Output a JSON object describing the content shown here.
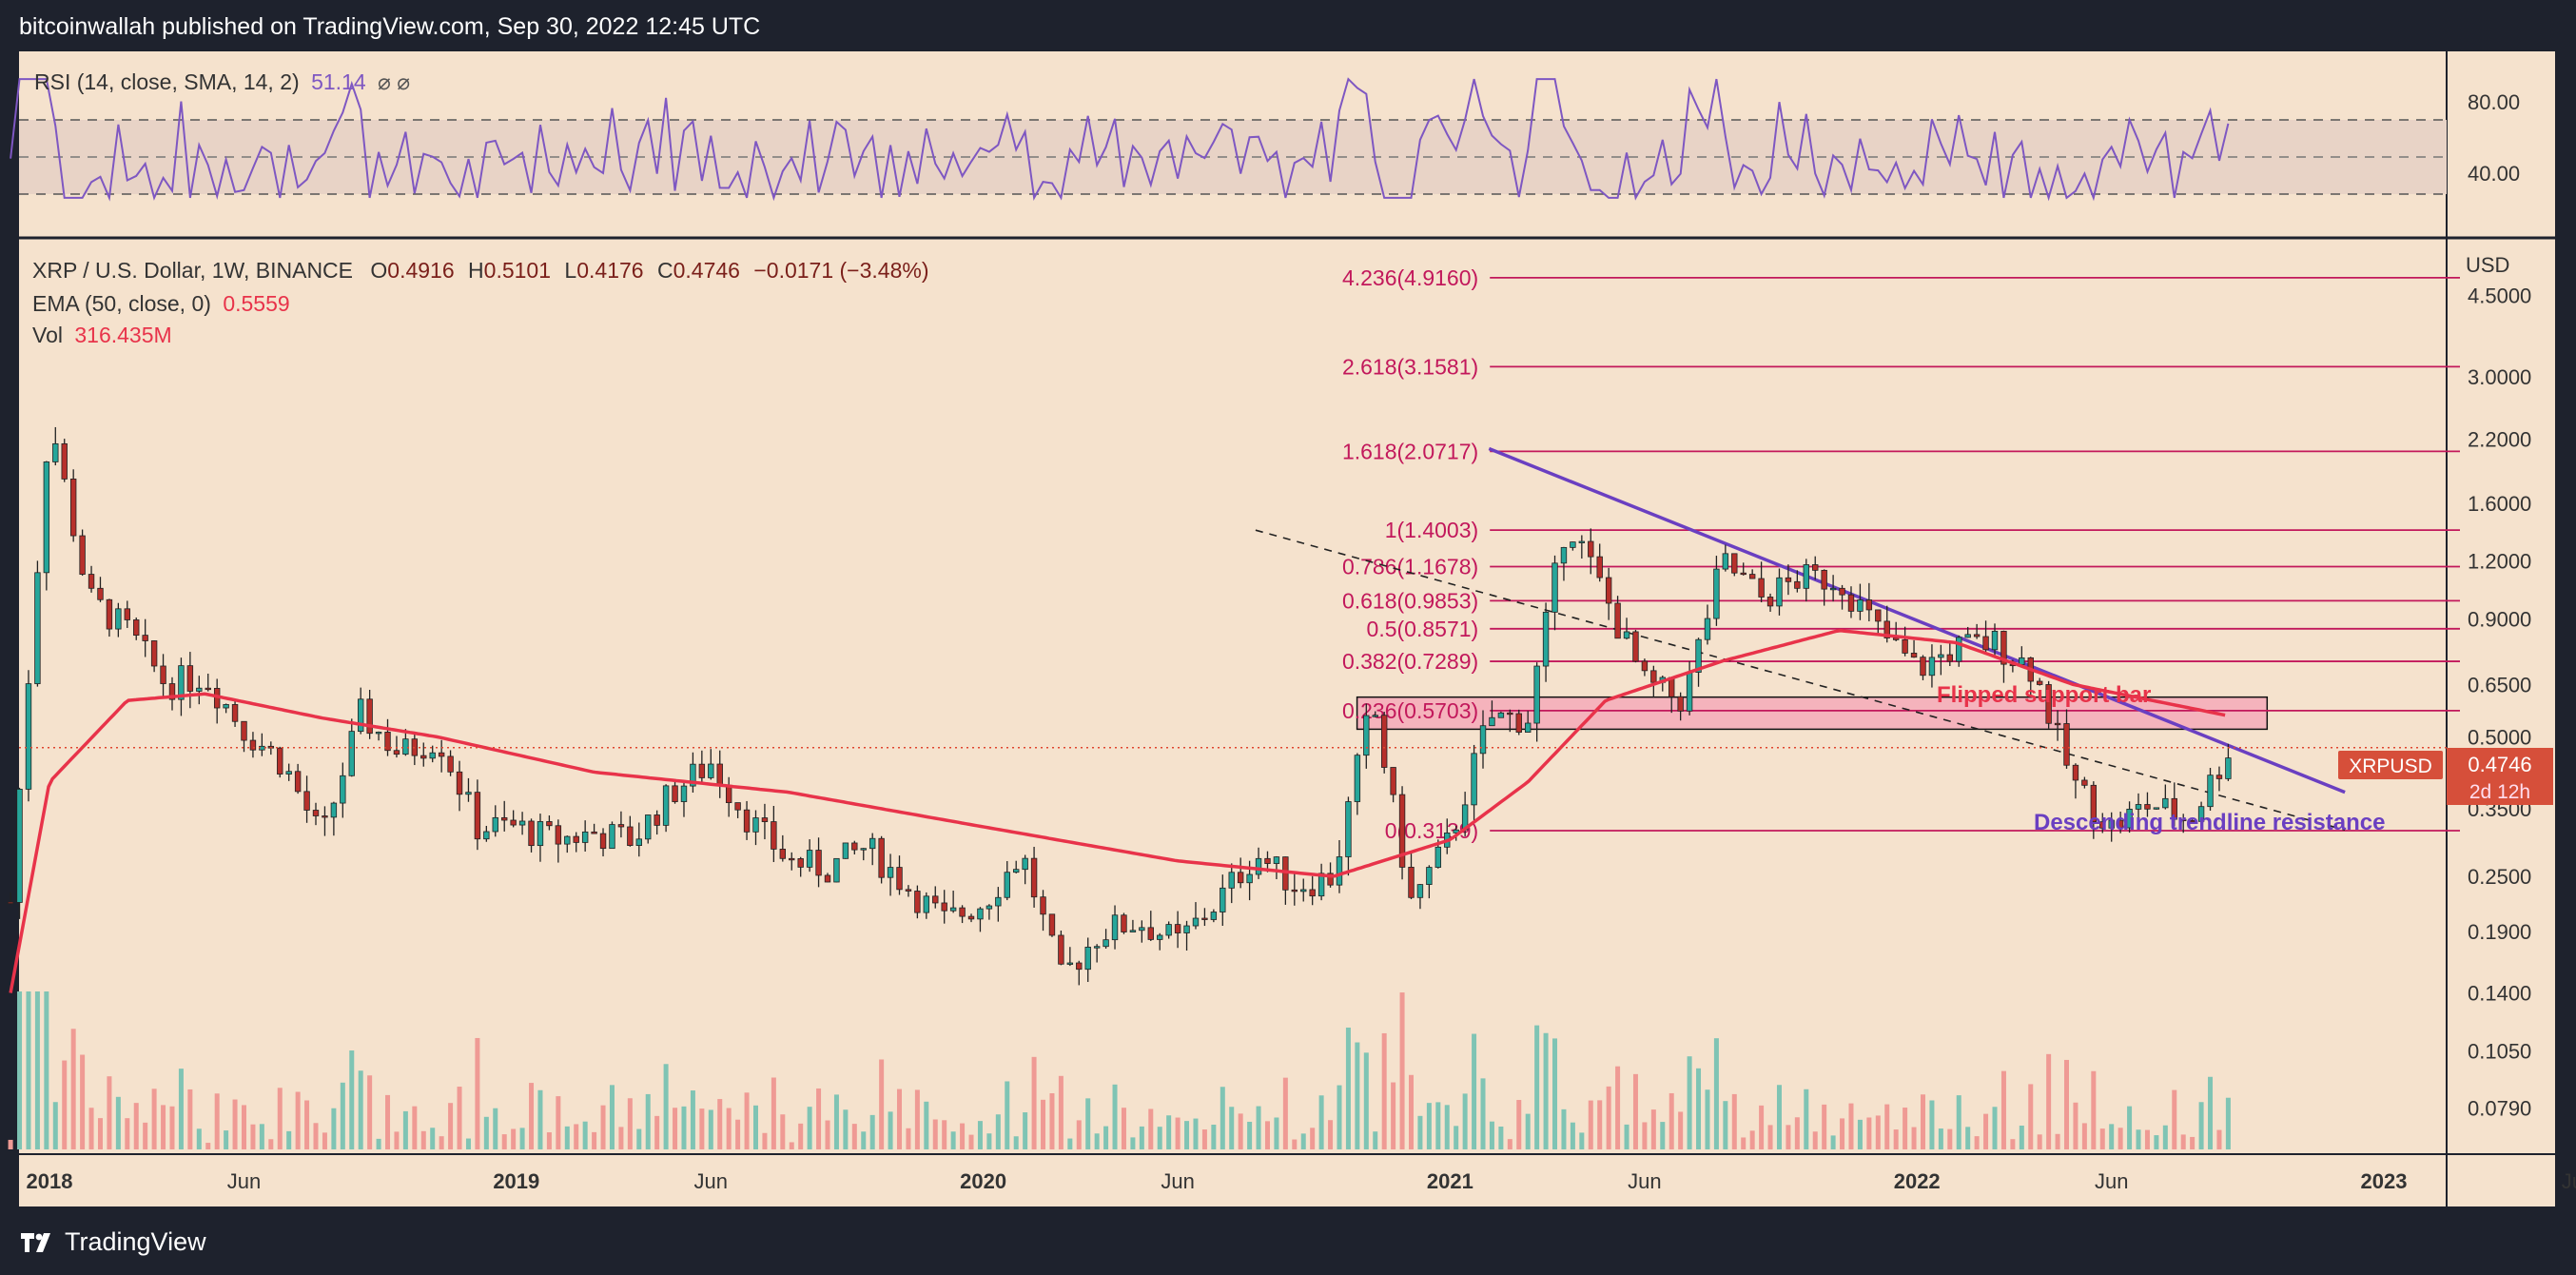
{
  "header": {
    "published": "bitcoinwallah published on TradingView.com, Sep 30, 2022 12:45 UTC"
  },
  "footer": {
    "brand": "TradingView"
  },
  "rsi_pane": {
    "legend_name": "RSI",
    "legend_params": "(14, close, SMA, 14, 2)",
    "legend_value": "51.14",
    "legend_icons": "⌀ ⌀",
    "axis_ticks": [
      "80.00",
      "40.00"
    ]
  },
  "main_pane": {
    "symbol": "XRP / U.S. Dollar, 1W, BINANCE",
    "ohlc": {
      "o_label": "O",
      "o": "0.4916",
      "h_label": "H",
      "h": "0.5101",
      "l_label": "L",
      "l": "0.4176",
      "c_label": "C",
      "c": "0.4746",
      "change": "−0.0171 (−3.48%)"
    },
    "ema_legend": {
      "label": "EMA (50, close, 0)",
      "value": "0.5559"
    },
    "vol_legend": {
      "label": "Vol",
      "value": "316.435M"
    },
    "currency": "USD",
    "price_badge": {
      "symbol": "XRPUSD",
      "price": "0.4746",
      "countdown": "2d 12h"
    }
  },
  "colors": {
    "background": "#f5e2cd",
    "frame": "#1e222d",
    "up_candle": "#26a69a",
    "down_candle": "#b7302b",
    "ema": "#e8334a",
    "fib": "#c2185b",
    "trendline": "#6a3fc1",
    "rsi": "#7e57c2",
    "support_fill": "#f4a3b5"
  },
  "chart_data": {
    "type": "candlestick",
    "scale": "log",
    "y_axis_ticks": [
      4.5,
      3.0,
      2.2,
      1.6,
      1.2,
      0.9,
      0.65,
      0.5,
      0.35,
      0.25,
      0.19,
      0.14,
      0.105,
      0.079
    ],
    "y_axis_labels": [
      "4.5000",
      "3.0000",
      "2.2000",
      "1.6000",
      "1.2000",
      "0.9000",
      "0.6500",
      "0.5000",
      "0.3500",
      "0.2500",
      "0.1900",
      "0.1400",
      "0.1050",
      "0.0790"
    ],
    "x_axis_labels": [
      "2018",
      "Jun",
      "2019",
      "Jun",
      "2020",
      "Jun",
      "2021",
      "Jun",
      "2022",
      "Jun",
      "2023",
      "Jun"
    ],
    "x_axis_bold": [
      "2018",
      "2019",
      "2020",
      "2021",
      "2022",
      "2023"
    ],
    "x_axis_dates": [
      "2018-01",
      "2018-06",
      "2019-01",
      "2019-06",
      "2020-01",
      "2020-06",
      "2021-01",
      "2021-06",
      "2022-01",
      "2022-06",
      "2023-01",
      "2023-06"
    ],
    "price_path": [
      [
        "2017-12",
        0.22
      ],
      [
        "2018-01",
        2.5
      ],
      [
        "2018-02",
        1.0
      ],
      [
        "2018-03",
        0.85
      ],
      [
        "2018-04",
        0.65
      ],
      [
        "2018-05",
        0.68
      ],
      [
        "2018-06",
        0.52
      ],
      [
        "2018-07",
        0.44
      ],
      [
        "2018-08",
        0.3
      ],
      [
        "2018-09",
        0.56
      ],
      [
        "2018-10",
        0.46
      ],
      [
        "2018-11",
        0.5
      ],
      [
        "2018-12",
        0.32
      ],
      [
        "2019-01",
        0.32
      ],
      [
        "2019-02",
        0.3
      ],
      [
        "2019-03",
        0.31
      ],
      [
        "2019-04",
        0.3
      ],
      [
        "2019-05",
        0.38
      ],
      [
        "2019-06",
        0.44
      ],
      [
        "2019-07",
        0.33
      ],
      [
        "2019-08",
        0.27
      ],
      [
        "2019-09",
        0.26
      ],
      [
        "2019-10",
        0.29
      ],
      [
        "2019-11",
        0.24
      ],
      [
        "2019-12",
        0.2
      ],
      [
        "2020-01",
        0.22
      ],
      [
        "2020-02",
        0.28
      ],
      [
        "2020-03",
        0.15
      ],
      [
        "2020-04",
        0.19
      ],
      [
        "2020-05",
        0.2
      ],
      [
        "2020-06",
        0.18
      ],
      [
        "2020-07",
        0.22
      ],
      [
        "2020-08",
        0.28
      ],
      [
        "2020-09",
        0.24
      ],
      [
        "2020-10",
        0.25
      ],
      [
        "2020-11",
        0.6
      ],
      [
        "2020-12",
        0.22
      ],
      [
        "2021-01",
        0.3
      ],
      [
        "2021-02",
        0.55
      ],
      [
        "2021-03",
        0.55
      ],
      [
        "2021-04",
        1.5
      ],
      [
        "2021-05",
        1.0
      ],
      [
        "2021-06",
        0.65
      ],
      [
        "2021-07",
        0.6
      ],
      [
        "2021-08",
        1.2
      ],
      [
        "2021-09",
        1.0
      ],
      [
        "2021-10",
        1.1
      ],
      [
        "2021-11",
        1.1
      ],
      [
        "2021-12",
        0.85
      ],
      [
        "2022-01",
        0.7
      ],
      [
        "2022-02",
        0.78
      ],
      [
        "2022-03",
        0.8
      ],
      [
        "2022-04",
        0.7
      ],
      [
        "2022-05",
        0.4
      ],
      [
        "2022-06",
        0.32
      ],
      [
        "2022-07",
        0.36
      ],
      [
        "2022-08",
        0.33
      ],
      [
        "2022-09",
        0.47
      ]
    ],
    "ema50_path": [
      [
        "2017-12",
        0.14
      ],
      [
        "2018-01",
        0.4
      ],
      [
        "2018-03",
        0.6
      ],
      [
        "2018-05",
        0.62
      ],
      [
        "2018-08",
        0.55
      ],
      [
        "2018-11",
        0.5
      ],
      [
        "2019-03",
        0.42
      ],
      [
        "2019-08",
        0.38
      ],
      [
        "2020-01",
        0.32
      ],
      [
        "2020-06",
        0.27
      ],
      [
        "2020-10",
        0.25
      ],
      [
        "2021-01",
        0.3
      ],
      [
        "2021-03",
        0.4
      ],
      [
        "2021-05",
        0.6
      ],
      [
        "2021-08",
        0.73
      ],
      [
        "2021-11",
        0.85
      ],
      [
        "2022-02",
        0.8
      ],
      [
        "2022-05",
        0.65
      ],
      [
        "2022-09",
        0.556
      ]
    ],
    "fibonacci": [
      {
        "ratio": "4.236",
        "price": 4.916,
        "label": "4.236(4.9160)"
      },
      {
        "ratio": "2.618",
        "price": 3.1581,
        "label": "2.618(3.1581)"
      },
      {
        "ratio": "1.618",
        "price": 2.0717,
        "label": "1.618(2.0717)"
      },
      {
        "ratio": "1",
        "price": 1.4003,
        "label": "1(1.4003)"
      },
      {
        "ratio": "0.786",
        "price": 1.1678,
        "label": "0.786(1.1678)"
      },
      {
        "ratio": "0.618",
        "price": 0.9853,
        "label": "0.618(0.9853)"
      },
      {
        "ratio": "0.5",
        "price": 0.8571,
        "label": "0.5(0.8571)"
      },
      {
        "ratio": "0.382",
        "price": 0.7289,
        "label": "0.382(0.7289)"
      },
      {
        "ratio": "0.236",
        "price": 0.5703,
        "label": "0.236(0.5703)"
      },
      {
        "ratio": "0",
        "price": 0.3139,
        "label": "0(0.3139)"
      }
    ],
    "annotations": [
      {
        "text": "Flipped support bar",
        "price_range": [
          0.52,
          0.61
        ],
        "date_range": [
          "2020-11",
          "2022-10"
        ]
      },
      {
        "text": "Descending trendline resistance",
        "from": [
          "2021-02",
          2.1
        ],
        "to": [
          "2022-12",
          0.38
        ]
      }
    ],
    "dashed_trendline": {
      "from": [
        "2020-08",
        1.4
      ],
      "to": [
        "2022-12",
        0.315
      ]
    },
    "current_price": 0.4746,
    "rsi": {
      "levels": [
        70,
        50,
        30
      ],
      "ticks": [
        80,
        40
      ],
      "last": 51.14
    }
  }
}
